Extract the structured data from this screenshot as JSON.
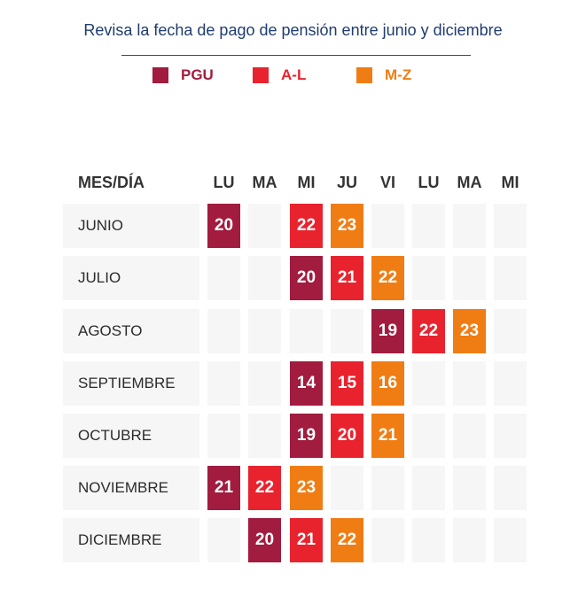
{
  "subtitle": "Revisa la fecha de pago de pensión entre junio y diciembre",
  "legend": [
    {
      "label": "PGU",
      "color": "#a11c3e",
      "key": "pgu"
    },
    {
      "label": "A-L",
      "color": "#e8232e",
      "key": "al"
    },
    {
      "label": "M-Z",
      "color": "#f07d14",
      "key": "mz"
    }
  ],
  "table": {
    "header": "MES/DÍA",
    "days": [
      "LU",
      "MA",
      "MI",
      "JU",
      "VI",
      "LU",
      "MA",
      "MI"
    ],
    "rows": [
      {
        "month": "JUNIO",
        "cells": [
          {
            "col": 0,
            "value": "20",
            "group": "pgu"
          },
          {
            "col": 2,
            "value": "22",
            "group": "al"
          },
          {
            "col": 3,
            "value": "23",
            "group": "mz"
          }
        ]
      },
      {
        "month": "JULIO",
        "cells": [
          {
            "col": 2,
            "value": "20",
            "group": "pgu"
          },
          {
            "col": 3,
            "value": "21",
            "group": "al"
          },
          {
            "col": 4,
            "value": "22",
            "group": "mz"
          }
        ]
      },
      {
        "month": "AGOSTO",
        "cells": [
          {
            "col": 4,
            "value": "19",
            "group": "pgu"
          },
          {
            "col": 5,
            "value": "22",
            "group": "al"
          },
          {
            "col": 6,
            "value": "23",
            "group": "mz"
          }
        ]
      },
      {
        "month": "SEPTIEMBRE",
        "cells": [
          {
            "col": 2,
            "value": "14",
            "group": "pgu"
          },
          {
            "col": 3,
            "value": "15",
            "group": "al"
          },
          {
            "col": 4,
            "value": "16",
            "group": "mz"
          }
        ]
      },
      {
        "month": "OCTUBRE",
        "cells": [
          {
            "col": 2,
            "value": "19",
            "group": "pgu"
          },
          {
            "col": 3,
            "value": "20",
            "group": "al"
          },
          {
            "col": 4,
            "value": "21",
            "group": "mz"
          }
        ]
      },
      {
        "month": "NOVIEMBRE",
        "cells": [
          {
            "col": 0,
            "value": "21",
            "group": "pgu"
          },
          {
            "col": 1,
            "value": "22",
            "group": "al"
          },
          {
            "col": 2,
            "value": "23",
            "group": "mz"
          }
        ]
      },
      {
        "month": "DICIEMBRE",
        "cells": [
          {
            "col": 1,
            "value": "20",
            "group": "pgu"
          },
          {
            "col": 2,
            "value": "21",
            "group": "al"
          },
          {
            "col": 3,
            "value": "22",
            "group": "mz"
          }
        ]
      }
    ]
  }
}
